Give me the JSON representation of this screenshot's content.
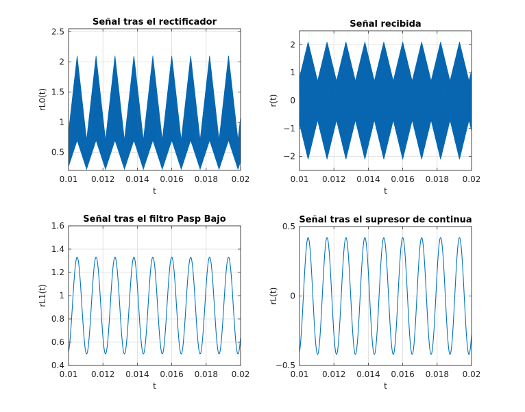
{
  "chart_data": [
    {
      "type": "line",
      "title": "Señal tras el rectificador",
      "xlabel": "t",
      "ylabel": "rL0(t)",
      "xlim": [
        0.01,
        0.02
      ],
      "ylim": [
        0.2,
        2.55
      ],
      "xticks": [
        "0.01",
        "0.012",
        "0.014",
        "0.016",
        "0.018",
        "0.02"
      ],
      "yticks": [
        "0.5",
        "1",
        "1.5",
        "2",
        "2.5"
      ],
      "grid": true,
      "color": "#0072BD",
      "envelope": {
        "kind": "rectified_am",
        "peaks_t": [
          0.0105,
          0.0116,
          0.0127,
          0.0138,
          0.0149,
          0.016,
          0.0171,
          0.0182,
          0.0193
        ],
        "upper_max": 2.1,
        "upper_min": 0.7,
        "lower_max": 0.7,
        "lower_min": 0.22
      }
    },
    {
      "type": "line",
      "title": "Señal recibida",
      "xlabel": "t",
      "ylabel": "r(t)",
      "xlim": [
        0.01,
        0.02
      ],
      "ylim": [
        -2.5,
        2.5
      ],
      "xticks": [
        "0.01",
        "0.012",
        "0.014",
        "0.016",
        "0.018",
        "0.02"
      ],
      "yticks": [
        "-2",
        "-1",
        "0",
        "1",
        "2"
      ],
      "grid": true,
      "color": "#0072BD",
      "envelope": {
        "kind": "am",
        "peaks_t": [
          0.0105,
          0.0116,
          0.0127,
          0.0138,
          0.0149,
          0.016,
          0.0171,
          0.0182,
          0.0193
        ],
        "amp_max": 2.1,
        "amp_min": 0.7
      }
    },
    {
      "type": "line",
      "title": "Señal tras el filtro Pasp Bajo",
      "xlabel": "t",
      "ylabel": "rL1(t)",
      "xlim": [
        0.01,
        0.02
      ],
      "ylim": [
        0.4,
        1.6
      ],
      "xticks": [
        "0.01",
        "0.012",
        "0.014",
        "0.016",
        "0.018",
        "0.02"
      ],
      "yticks": [
        "0.4",
        "0.6",
        "0.8",
        "1",
        "1.2",
        "1.4",
        "1.6"
      ],
      "grid": true,
      "color": "#0072BD",
      "wave": {
        "peaks_t": [
          0.0105,
          0.0116,
          0.0127,
          0.0138,
          0.0149,
          0.016,
          0.0171,
          0.0182,
          0.0193
        ],
        "max": 1.33,
        "min": 0.5
      }
    },
    {
      "type": "line",
      "title": "Señal tras el supresor de continua",
      "xlabel": "t",
      "ylabel": "rL(t)",
      "xlim": [
        0.01,
        0.02
      ],
      "ylim": [
        -0.5,
        0.5
      ],
      "xticks": [
        "0.01",
        "0.012",
        "0.014",
        "0.016",
        "0.018",
        "0.02"
      ],
      "yticks": [
        "-0.5",
        "0",
        "0.5"
      ],
      "grid": true,
      "color": "#0072BD",
      "wave": {
        "peaks_t": [
          0.0105,
          0.0116,
          0.0127,
          0.0138,
          0.0149,
          0.016,
          0.0171,
          0.0182,
          0.0193
        ],
        "max": 0.42,
        "min": -0.42
      }
    }
  ]
}
